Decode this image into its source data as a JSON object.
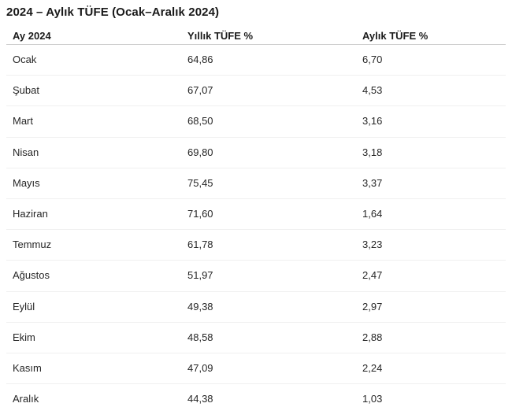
{
  "page": {
    "title": "2024 – Aylık TÜFE (Ocak–Aralık 2024)"
  },
  "table": {
    "columns": [
      "Ay 2024",
      "Yıllık TÜFE %",
      "Aylık TÜFE %"
    ],
    "rows": [
      {
        "month": "Ocak",
        "yearly": "64,86",
        "monthly": "6,70"
      },
      {
        "month": "Şubat",
        "yearly": "67,07",
        "monthly": "4,53"
      },
      {
        "month": "Mart",
        "yearly": "68,50",
        "monthly": "3,16"
      },
      {
        "month": "Nisan",
        "yearly": "69,80",
        "monthly": "3,18"
      },
      {
        "month": "Mayıs",
        "yearly": "75,45",
        "monthly": "3,37"
      },
      {
        "month": "Haziran",
        "yearly": "71,60",
        "monthly": "1,64"
      },
      {
        "month": "Temmuz",
        "yearly": "61,78",
        "monthly": "3,23"
      },
      {
        "month": "Ağustos",
        "yearly": "51,97",
        "monthly": "2,47"
      },
      {
        "month": "Eylül",
        "yearly": "49,38",
        "monthly": "2,97"
      },
      {
        "month": "Ekim",
        "yearly": "48,58",
        "monthly": "2,88"
      },
      {
        "month": "Kasım",
        "yearly": "47,09",
        "monthly": "2,24"
      },
      {
        "month": "Aralık",
        "yearly": "44,38",
        "monthly": "1,03"
      }
    ]
  },
  "colors": {
    "background": "#ffffff",
    "title_text": "#191919",
    "header_text": "#1b1b1b",
    "body_text": "#262626",
    "header_divider": "#cfcfcf",
    "row_divider": "#f0f0f0"
  },
  "chart_data": {
    "type": "table",
    "title": "2024 – Aylık TÜFE (Ocak–Aralık 2024)",
    "columns": [
      "Ay 2024",
      "Yıllık TÜFE %",
      "Aylık TÜFE %"
    ],
    "categories": [
      "Ocak",
      "Şubat",
      "Mart",
      "Nisan",
      "Mayıs",
      "Haziran",
      "Temmuz",
      "Ağustos",
      "Eylül",
      "Ekim",
      "Kasım",
      "Aralık"
    ],
    "series": [
      {
        "name": "Yıllık TÜFE %",
        "values": [
          64.86,
          67.07,
          68.5,
          69.8,
          75.45,
          71.6,
          61.78,
          51.97,
          49.38,
          48.58,
          47.09,
          44.38
        ]
      },
      {
        "name": "Aylık TÜFE %",
        "values": [
          6.7,
          4.53,
          3.16,
          3.18,
          3.37,
          1.64,
          3.23,
          2.47,
          2.97,
          2.88,
          2.24,
          1.03
        ]
      }
    ],
    "layout": {
      "grid": "horizontal-row-dividers",
      "legend": "none"
    }
  }
}
